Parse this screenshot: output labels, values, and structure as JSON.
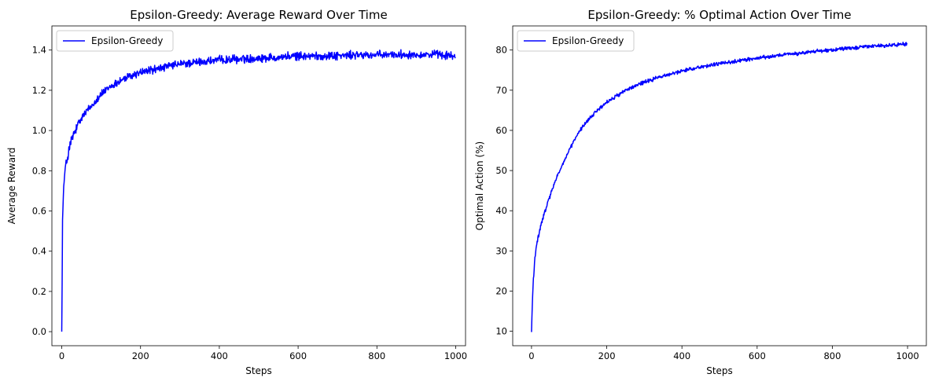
{
  "chart_data": [
    {
      "type": "line",
      "title": "Epsilon-Greedy: Average Reward Over Time",
      "xlabel": "Steps",
      "ylabel": "Average Reward",
      "xlim": [
        -25,
        1025
      ],
      "ylim": [
        -0.07,
        1.52
      ],
      "xticks": [
        0,
        200,
        400,
        600,
        800,
        1000
      ],
      "yticks": [
        0.0,
        0.2,
        0.4,
        0.6,
        0.8,
        1.0,
        1.2,
        1.4
      ],
      "grid": false,
      "legend": "top-left",
      "series": [
        {
          "name": "Epsilon-Greedy",
          "color": "#0000ff",
          "x": [
            0,
            2,
            4,
            6,
            8,
            10,
            15,
            20,
            25,
            30,
            40,
            50,
            60,
            75,
            90,
            100,
            125,
            150,
            175,
            200,
            250,
            300,
            350,
            400,
            450,
            500,
            550,
            600,
            650,
            700,
            750,
            800,
            850,
            900,
            950,
            999
          ],
          "y": [
            0.0,
            0.55,
            0.67,
            0.75,
            0.79,
            0.82,
            0.87,
            0.92,
            0.95,
            0.98,
            1.02,
            1.06,
            1.09,
            1.12,
            1.16,
            1.18,
            1.22,
            1.25,
            1.27,
            1.29,
            1.31,
            1.33,
            1.34,
            1.35,
            1.355,
            1.36,
            1.365,
            1.37,
            1.37,
            1.372,
            1.375,
            1.375,
            1.378,
            1.378,
            1.378,
            1.37
          ]
        }
      ]
    },
    {
      "type": "line",
      "title": "Epsilon-Greedy: % Optimal Action Over Time",
      "xlabel": "Steps",
      "ylabel": "Optimal Action (%)",
      "xlim": [
        -50,
        1050
      ],
      "ylim": [
        6.4,
        86.0
      ],
      "xticks": [
        0,
        200,
        400,
        600,
        800,
        1000
      ],
      "yticks": [
        10,
        20,
        30,
        40,
        50,
        60,
        70,
        80
      ],
      "grid": false,
      "legend": "top-left",
      "series": [
        {
          "name": "Epsilon-Greedy",
          "color": "#0000ff",
          "x": [
            0,
            2,
            5,
            8,
            10,
            15,
            20,
            30,
            40,
            50,
            60,
            75,
            90,
            100,
            125,
            150,
            175,
            200,
            250,
            300,
            350,
            400,
            450,
            500,
            550,
            600,
            650,
            700,
            750,
            800,
            850,
            900,
            950,
            999
          ],
          "y": [
            9.8,
            16.5,
            23.0,
            27.0,
            29.0,
            32.0,
            34.5,
            38.0,
            41.0,
            44.0,
            46.5,
            50.0,
            53.0,
            55.0,
            59.5,
            62.5,
            65.0,
            67.0,
            70.0,
            72.0,
            73.5,
            74.8,
            75.8,
            76.6,
            77.3,
            78.0,
            78.6,
            79.1,
            79.6,
            80.1,
            80.5,
            80.9,
            81.2,
            81.5
          ]
        }
      ]
    }
  ]
}
